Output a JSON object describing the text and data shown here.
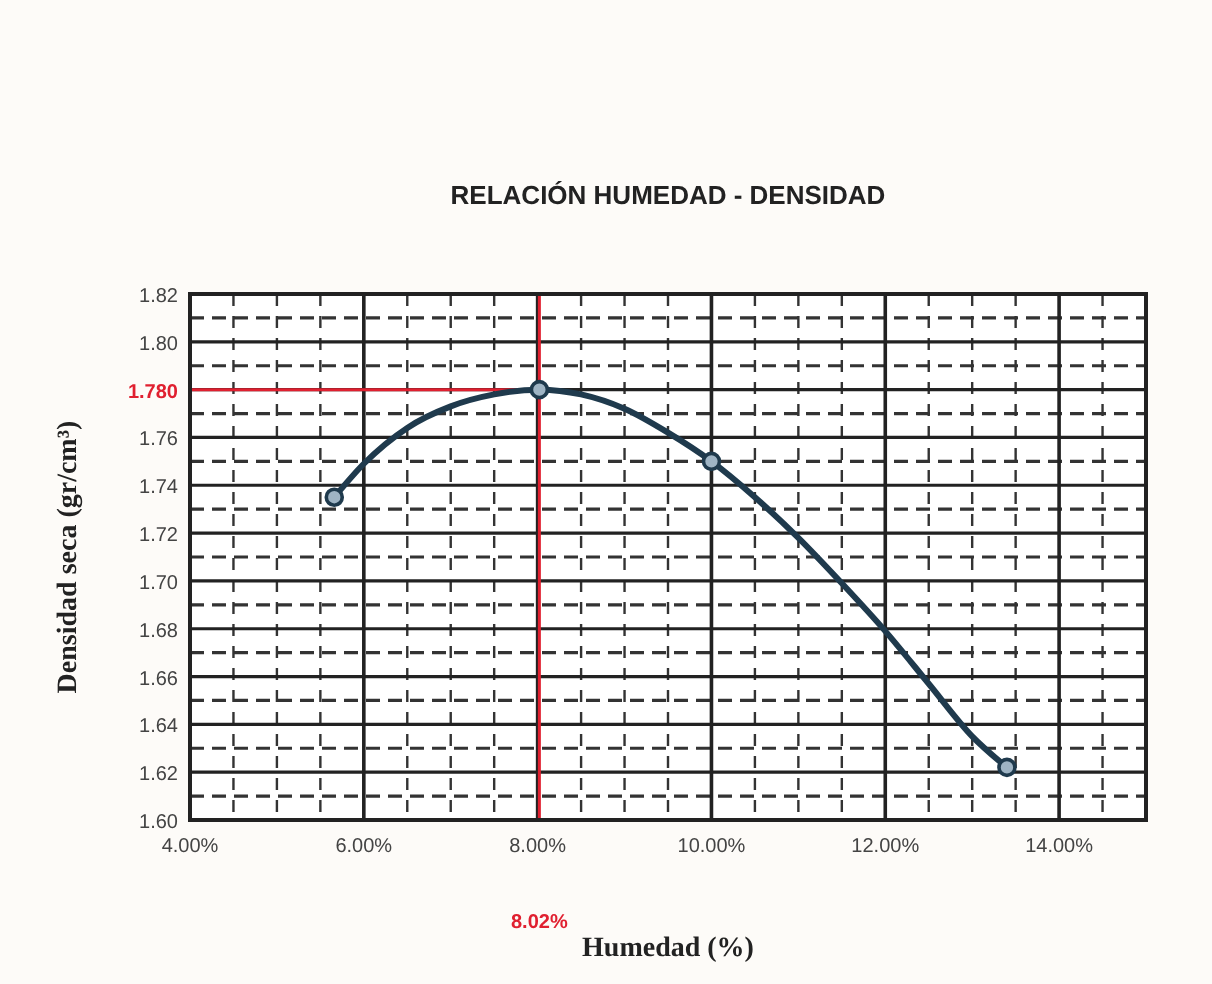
{
  "chart_data": {
    "type": "line",
    "title": "RELACIÓN HUMEDAD - DENSIDAD",
    "xlabel": "Humedad (%)",
    "ylabel": "Densidad seca (gr/cm³)",
    "xlim": [
      4,
      15
    ],
    "ylim": [
      1.6,
      1.82
    ],
    "xticks": [
      {
        "value": 4,
        "label": "4.00%"
      },
      {
        "value": 6,
        "label": "6.00%"
      },
      {
        "value": 8,
        "label": "8.00%"
      },
      {
        "value": 10,
        "label": "10.00%"
      },
      {
        "value": 12,
        "label": "12.00%"
      },
      {
        "value": 14,
        "label": "14.00%"
      }
    ],
    "yticks": [
      {
        "value": 1.6,
        "label": "1.60"
      },
      {
        "value": 1.62,
        "label": "1.62"
      },
      {
        "value": 1.64,
        "label": "1.64"
      },
      {
        "value": 1.66,
        "label": "1.66"
      },
      {
        "value": 1.68,
        "label": "1.68"
      },
      {
        "value": 1.7,
        "label": "1.70"
      },
      {
        "value": 1.72,
        "label": "1.72"
      },
      {
        "value": 1.74,
        "label": "1.74"
      },
      {
        "value": 1.76,
        "label": "1.76"
      },
      {
        "value": 1.78,
        "label": null
      },
      {
        "value": 1.8,
        "label": "1.80"
      },
      {
        "value": 1.82,
        "label": "1.82"
      }
    ],
    "grid": true,
    "series": [
      {
        "color": "#1f3a4d",
        "marker": "none",
        "x": [
          5.66,
          6.0,
          6.5,
          7.0,
          7.5,
          8.02,
          8.5,
          9.0,
          9.5,
          10.0,
          10.5,
          11.0,
          11.5,
          12.0,
          12.5,
          13.0,
          13.4
        ],
        "values": [
          1.735,
          1.749,
          1.764,
          1.773,
          1.778,
          1.78,
          1.778,
          1.772,
          1.762,
          1.75,
          1.735,
          1.718,
          1.699,
          1.679,
          1.657,
          1.635,
          1.622
        ]
      },
      {
        "type": "scatter",
        "color": "#1f3a4d",
        "marker": "circle",
        "x": [
          5.66,
          8.02,
          10.0,
          13.4
        ],
        "values": [
          1.735,
          1.78,
          1.75,
          1.622
        ]
      }
    ],
    "ref_lines": [
      {
        "axis": "x",
        "value": 8.02,
        "label": "8.02%",
        "color": "#e02030"
      },
      {
        "axis": "y",
        "value": 1.78,
        "label": "1.780",
        "color": "#e02030"
      }
    ]
  }
}
